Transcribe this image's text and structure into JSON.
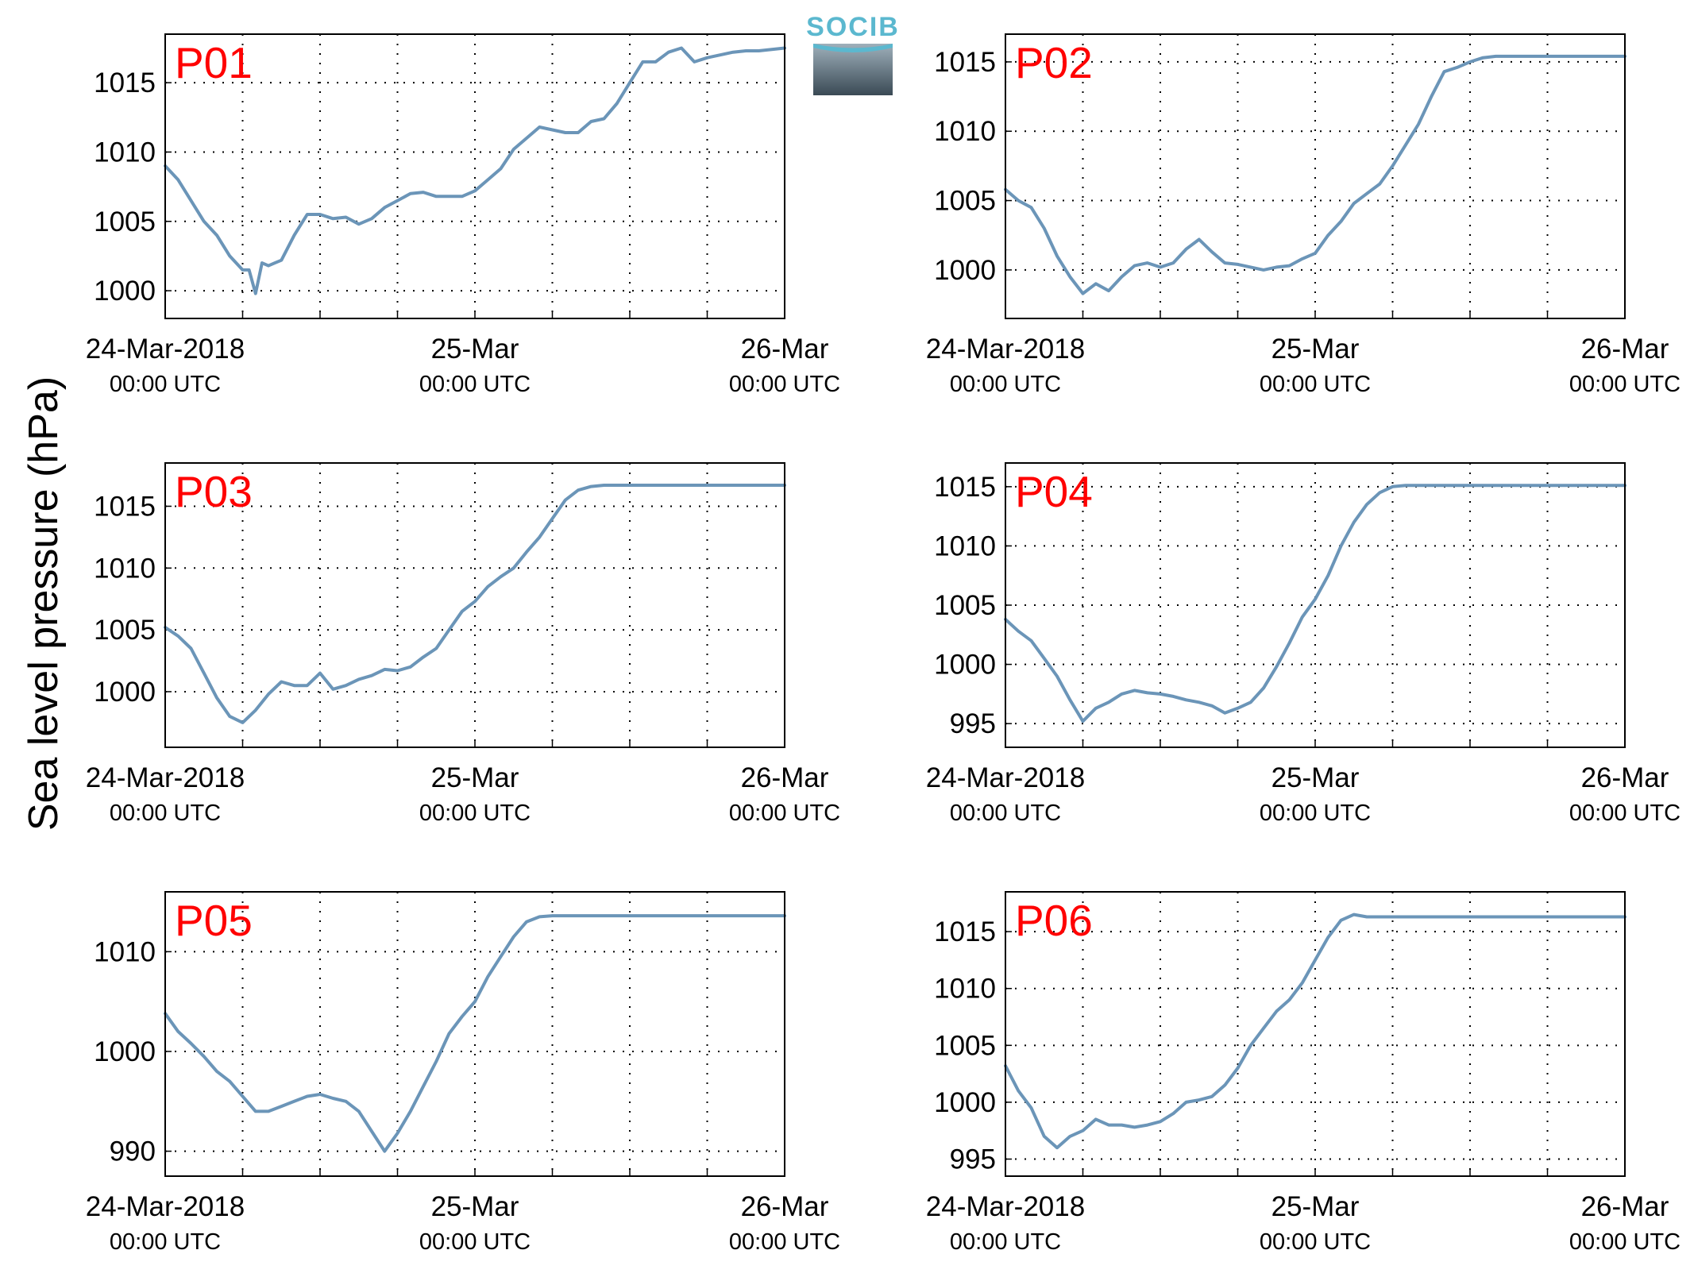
{
  "ylabel": "Sea level pressure (hPa)",
  "logo_text": "SOCIB",
  "series_color": "#6b95b8",
  "label_color": "#ff0000",
  "x_ticks": [
    {
      "major": "24-Mar-2018",
      "minor": "00:00 UTC"
    },
    {
      "major": "25-Mar",
      "minor": "00:00 UTC"
    },
    {
      "major": "26-Mar",
      "minor": "00:00 UTC"
    }
  ],
  "chart_data": [
    {
      "type": "line",
      "panel_label": "P01",
      "x_range_hours": [
        0,
        48
      ],
      "ylim": [
        998,
        1018.5
      ],
      "yticks": [
        1000,
        1005,
        1010,
        1015
      ],
      "grid": true,
      "x": [
        0,
        1,
        2,
        3,
        4,
        5,
        6,
        6.5,
        7,
        7.5,
        8,
        8.5,
        9,
        10,
        11,
        12,
        13,
        14,
        15,
        16,
        17,
        18,
        19,
        20,
        21,
        22,
        23,
        24,
        25,
        26,
        27,
        28,
        29,
        30,
        31,
        32,
        33,
        34,
        35,
        36,
        37,
        38,
        39,
        40,
        41,
        42,
        43,
        44,
        45,
        46,
        47,
        48
      ],
      "values": [
        1009,
        1008,
        1006.5,
        1005,
        1004,
        1002.5,
        1001.5,
        1001.5,
        999.8,
        1002,
        1001.8,
        1002,
        1002.2,
        1004,
        1005.5,
        1005.5,
        1005.2,
        1005.3,
        1004.8,
        1005.2,
        1006,
        1006.5,
        1007,
        1007.1,
        1006.8,
        1006.8,
        1006.8,
        1007.2,
        1008,
        1008.8,
        1010.2,
        1011,
        1011.8,
        1011.6,
        1011.4,
        1011.4,
        1012.2,
        1012.4,
        1013.5,
        1015,
        1016.5,
        1016.5,
        1017.2,
        1017.5,
        1016.5,
        1016.8,
        1017,
        1017.2,
        1017.3,
        1017.3,
        1017.4,
        1017.5
      ]
    },
    {
      "type": "line",
      "panel_label": "P02",
      "x_range_hours": [
        0,
        48
      ],
      "ylim": [
        996.5,
        1017
      ],
      "yticks": [
        1000,
        1005,
        1010,
        1015
      ],
      "grid": true,
      "x": [
        0,
        1,
        2,
        3,
        4,
        5,
        6,
        7,
        8,
        9,
        10,
        11,
        12,
        13,
        14,
        15,
        16,
        17,
        18,
        19,
        20,
        21,
        22,
        23,
        24,
        25,
        26,
        27,
        28,
        29,
        30,
        31,
        32,
        33,
        34,
        35,
        36,
        37,
        38,
        39,
        40,
        41,
        42,
        43,
        44,
        45,
        46,
        47,
        48
      ],
      "values": [
        1005.8,
        1005,
        1004.5,
        1003,
        1001,
        999.5,
        998.3,
        999,
        998.5,
        999.5,
        1000.3,
        1000.5,
        1000.2,
        1000.5,
        1001.5,
        1002.2,
        1001.3,
        1000.5,
        1000.4,
        1000.2,
        1000,
        1000.2,
        1000.3,
        1000.8,
        1001.2,
        1002.5,
        1003.5,
        1004.8,
        1005.5,
        1006.2,
        1007.5,
        1009,
        1010.5,
        1012.5,
        1014.3,
        1014.6,
        1015,
        1015.3,
        1015.4,
        1015.4,
        1015.4,
        1015.4,
        1015.4,
        1015.4,
        1015.4,
        1015.4,
        1015.4,
        1015.4,
        1015.4
      ]
    },
    {
      "type": "line",
      "panel_label": "P03",
      "x_range_hours": [
        0,
        48
      ],
      "ylim": [
        995.5,
        1018.5
      ],
      "yticks": [
        1000,
        1005,
        1010,
        1015
      ],
      "grid": true,
      "x": [
        0,
        1,
        2,
        3,
        4,
        5,
        6,
        7,
        8,
        9,
        10,
        11,
        12,
        13,
        14,
        15,
        16,
        17,
        18,
        19,
        20,
        21,
        22,
        23,
        24,
        25,
        26,
        27,
        28,
        29,
        30,
        31,
        32,
        33,
        34,
        35,
        36,
        37,
        38,
        39,
        40,
        41,
        42,
        43,
        44,
        45,
        46,
        47,
        48
      ],
      "values": [
        1005.2,
        1004.5,
        1003.5,
        1001.5,
        999.5,
        998,
        997.5,
        998.5,
        999.8,
        1000.8,
        1000.5,
        1000.5,
        1001.5,
        1000.2,
        1000.5,
        1001,
        1001.3,
        1001.8,
        1001.7,
        1002,
        1002.8,
        1003.5,
        1005,
        1006.5,
        1007.3,
        1008.5,
        1009.3,
        1010,
        1011.3,
        1012.5,
        1014,
        1015.5,
        1016.3,
        1016.6,
        1016.7,
        1016.7,
        1016.7,
        1016.7,
        1016.7,
        1016.7,
        1016.7,
        1016.7,
        1016.7,
        1016.7,
        1016.7,
        1016.7,
        1016.7,
        1016.7,
        1016.7
      ]
    },
    {
      "type": "line",
      "panel_label": "P04",
      "x_range_hours": [
        0,
        48
      ],
      "ylim": [
        993,
        1017
      ],
      "yticks": [
        995,
        1000,
        1005,
        1010,
        1015
      ],
      "grid": true,
      "x": [
        0,
        1,
        2,
        3,
        4,
        5,
        6,
        7,
        8,
        9,
        10,
        11,
        12,
        13,
        14,
        15,
        16,
        17,
        18,
        19,
        20,
        21,
        22,
        23,
        24,
        25,
        26,
        27,
        28,
        29,
        30,
        31,
        32,
        33,
        34,
        35,
        36,
        37,
        38,
        39,
        40,
        41,
        42,
        43,
        44,
        45,
        46,
        47,
        48
      ],
      "values": [
        1003.8,
        1002.8,
        1002,
        1000.5,
        999,
        997,
        995.2,
        996.3,
        996.8,
        997.5,
        997.8,
        997.6,
        997.5,
        997.3,
        997,
        996.8,
        996.5,
        995.9,
        996.3,
        996.8,
        998,
        999.8,
        1001.8,
        1004,
        1005.5,
        1007.5,
        1010,
        1012,
        1013.5,
        1014.5,
        1015,
        1015.1,
        1015.1,
        1015.1,
        1015.1,
        1015.1,
        1015.1,
        1015.1,
        1015.1,
        1015.1,
        1015.1,
        1015.1,
        1015.1,
        1015.1,
        1015.1,
        1015.1,
        1015.1,
        1015.1,
        1015.1
      ]
    },
    {
      "type": "line",
      "panel_label": "P05",
      "x_range_hours": [
        0,
        48
      ],
      "ylim": [
        987.5,
        1016
      ],
      "yticks": [
        990,
        1000,
        1010
      ],
      "grid": true,
      "x": [
        0,
        1,
        2,
        3,
        4,
        5,
        6,
        7,
        8,
        9,
        10,
        11,
        12,
        13,
        14,
        15,
        16,
        17,
        18,
        19,
        20,
        21,
        22,
        23,
        24,
        25,
        26,
        27,
        28,
        29,
        30,
        31,
        32,
        33,
        34,
        35,
        36,
        37,
        38,
        39,
        40,
        41,
        42,
        43,
        44,
        45,
        46,
        47,
        48
      ],
      "values": [
        1003.8,
        1002,
        1000.8,
        999.5,
        998,
        997,
        995.5,
        994,
        994,
        994.5,
        995,
        995.5,
        995.7,
        995.3,
        995,
        994,
        992,
        990,
        991.8,
        994,
        996.5,
        999,
        1001.8,
        1003.5,
        1005,
        1007.5,
        1009.5,
        1011.5,
        1013,
        1013.5,
        1013.6,
        1013.6,
        1013.6,
        1013.6,
        1013.6,
        1013.6,
        1013.6,
        1013.6,
        1013.6,
        1013.6,
        1013.6,
        1013.6,
        1013.6,
        1013.6,
        1013.6,
        1013.6,
        1013.6,
        1013.6,
        1013.6
      ]
    },
    {
      "type": "line",
      "panel_label": "P06",
      "x_range_hours": [
        0,
        48
      ],
      "ylim": [
        993.5,
        1018.5
      ],
      "yticks": [
        995,
        1000,
        1005,
        1010,
        1015
      ],
      "grid": true,
      "x": [
        0,
        1,
        2,
        3,
        4,
        5,
        6,
        7,
        8,
        9,
        10,
        11,
        12,
        13,
        14,
        15,
        16,
        17,
        18,
        19,
        20,
        21,
        22,
        23,
        24,
        25,
        26,
        27,
        28,
        29,
        30,
        31,
        32,
        33,
        34,
        35,
        36,
        37,
        38,
        39,
        40,
        41,
        42,
        43,
        44,
        45,
        46,
        47,
        48
      ],
      "values": [
        1003.2,
        1001,
        999.5,
        997,
        996,
        997,
        997.5,
        998.5,
        998,
        998,
        997.8,
        998,
        998.3,
        999,
        1000,
        1000.2,
        1000.5,
        1001.5,
        1003,
        1005,
        1006.5,
        1008,
        1009,
        1010.5,
        1012.5,
        1014.5,
        1016,
        1016.5,
        1016.3,
        1016.3,
        1016.3,
        1016.3,
        1016.3,
        1016.3,
        1016.3,
        1016.3,
        1016.3,
        1016.3,
        1016.3,
        1016.3,
        1016.3,
        1016.3,
        1016.3,
        1016.3,
        1016.3,
        1016.3,
        1016.3,
        1016.3,
        1016.3
      ]
    }
  ]
}
